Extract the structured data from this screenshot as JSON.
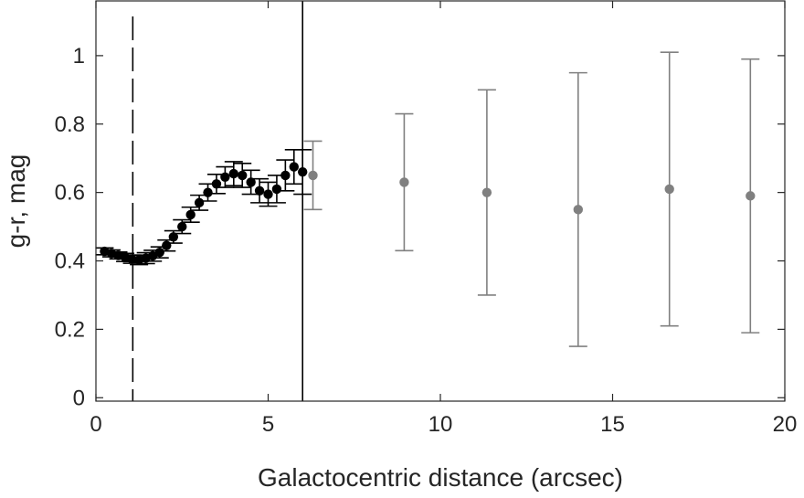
{
  "chart_data": {
    "type": "scatter",
    "xlabel": "Galactocentric distance (arcsec)",
    "ylabel": "g-r, mag",
    "xlim": [
      0,
      20
    ],
    "ylim": [
      -0.01,
      1.16
    ],
    "xticks": [
      0,
      5,
      10,
      15,
      20
    ],
    "xtick_labels": [
      "0",
      "5",
      "10",
      "15",
      "20"
    ],
    "yticks": [
      0,
      0.2,
      0.4,
      0.6,
      0.8,
      1.0
    ],
    "ytick_labels": [
      "0",
      "0.2",
      "0.4",
      "0.6",
      "0.8",
      "1"
    ],
    "grid": false,
    "vertical_lines": [
      {
        "x": 1.07,
        "style": "dashed",
        "color": "#000000"
      },
      {
        "x": 6.0,
        "style": "solid",
        "color": "#000000"
      }
    ],
    "series": [
      {
        "color": "#000000",
        "points": [
          {
            "x": 0.25,
            "y": 0.428,
            "err": 0.01
          },
          {
            "x": 0.45,
            "y": 0.422,
            "err": 0.01
          },
          {
            "x": 0.65,
            "y": 0.416,
            "err": 0.01
          },
          {
            "x": 0.85,
            "y": 0.41,
            "err": 0.012
          },
          {
            "x": 1.05,
            "y": 0.405,
            "err": 0.012
          },
          {
            "x": 1.25,
            "y": 0.403,
            "err": 0.014
          },
          {
            "x": 1.45,
            "y": 0.408,
            "err": 0.016
          },
          {
            "x": 1.65,
            "y": 0.415,
            "err": 0.016
          },
          {
            "x": 1.85,
            "y": 0.425,
            "err": 0.016
          },
          {
            "x": 2.05,
            "y": 0.445,
            "err": 0.016
          },
          {
            "x": 2.25,
            "y": 0.47,
            "err": 0.018
          },
          {
            "x": 2.5,
            "y": 0.5,
            "err": 0.02
          },
          {
            "x": 2.75,
            "y": 0.535,
            "err": 0.022
          },
          {
            "x": 3.0,
            "y": 0.57,
            "err": 0.022
          },
          {
            "x": 3.25,
            "y": 0.6,
            "err": 0.025
          },
          {
            "x": 3.5,
            "y": 0.625,
            "err": 0.028
          },
          {
            "x": 3.75,
            "y": 0.645,
            "err": 0.03
          },
          {
            "x": 4.0,
            "y": 0.655,
            "err": 0.035
          },
          {
            "x": 4.25,
            "y": 0.65,
            "err": 0.035
          },
          {
            "x": 4.5,
            "y": 0.63,
            "err": 0.035
          },
          {
            "x": 4.75,
            "y": 0.605,
            "err": 0.035
          },
          {
            "x": 5.0,
            "y": 0.595,
            "err": 0.035
          },
          {
            "x": 5.25,
            "y": 0.61,
            "err": 0.04
          },
          {
            "x": 5.5,
            "y": 0.65,
            "err": 0.045
          },
          {
            "x": 5.75,
            "y": 0.675,
            "err": 0.05
          },
          {
            "x": 6.0,
            "y": 0.66,
            "err": 0.065
          }
        ]
      },
      {
        "color": "#808080",
        "points": [
          {
            "x": 6.3,
            "y": 0.65,
            "err": 0.1
          },
          {
            "x": 8.95,
            "y": 0.63,
            "err": 0.2
          },
          {
            "x": 11.35,
            "y": 0.6,
            "err": 0.3
          },
          {
            "x": 14.0,
            "y": 0.55,
            "err": 0.4
          },
          {
            "x": 16.65,
            "y": 0.61,
            "err": 0.4
          },
          {
            "x": 19.0,
            "y": 0.59,
            "err": 0.4
          }
        ]
      }
    ]
  }
}
